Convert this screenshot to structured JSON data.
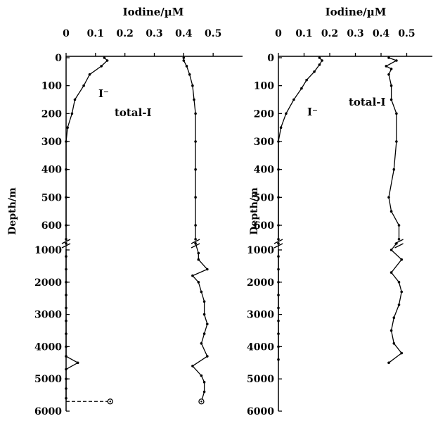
{
  "chart_data": [
    {
      "type": "line",
      "panel": "left",
      "title": "Iodine/µM",
      "ylabel": "Depth/m",
      "xlim": [
        0,
        0.6
      ],
      "x_ticks": [
        "0",
        "0.1",
        "0.2",
        "0.3",
        "0.4",
        "0.5"
      ],
      "y_ticks_upper": [
        "0",
        "100",
        "200",
        "300",
        "400",
        "500",
        "600"
      ],
      "y_ticks_lower": [
        "1000",
        "2000",
        "3000",
        "4000",
        "5000",
        "6000"
      ],
      "broken_axis": true,
      "series": [
        {
          "name": "I⁻",
          "upper": [
            [
              0.13,
              0
            ],
            [
              0.14,
              10
            ],
            [
              0.12,
              30
            ],
            [
              0.08,
              60
            ],
            [
              0.06,
              100
            ],
            [
              0.03,
              150
            ],
            [
              0.02,
              200
            ],
            [
              0.005,
              250
            ],
            [
              0,
              300
            ],
            [
              0,
              400
            ],
            [
              0,
              500
            ],
            [
              0,
              600
            ],
            [
              0,
              650
            ]
          ],
          "lower": [
            [
              0,
              800
            ],
            [
              0,
              1200
            ],
            [
              0,
              1600
            ],
            [
              0,
              2000
            ],
            [
              0,
              2400
            ],
            [
              0,
              2800
            ],
            [
              0,
              3200
            ],
            [
              0,
              3600
            ],
            [
              0,
              4000
            ],
            [
              0,
              4300
            ],
            [
              0.04,
              4500
            ],
            [
              0,
              4700
            ],
            [
              0,
              5000
            ],
            [
              0,
              5300
            ],
            [
              0,
              5600
            ]
          ],
          "open_marker": [
            0.15,
            5700
          ]
        },
        {
          "name": "total-I",
          "upper": [
            [
              0.4,
              0
            ],
            [
              0.4,
              10
            ],
            [
              0.41,
              30
            ],
            [
              0.42,
              60
            ],
            [
              0.43,
              100
            ],
            [
              0.435,
              150
            ],
            [
              0.44,
              200
            ],
            [
              0.44,
              300
            ],
            [
              0.44,
              400
            ],
            [
              0.44,
              500
            ],
            [
              0.44,
              600
            ],
            [
              0.44,
              650
            ]
          ],
          "lower": [
            [
              0.44,
              800
            ],
            [
              0.45,
              1100
            ],
            [
              0.45,
              1300
            ],
            [
              0.48,
              1600
            ],
            [
              0.43,
              1800
            ],
            [
              0.45,
              2000
            ],
            [
              0.46,
              2300
            ],
            [
              0.47,
              2600
            ],
            [
              0.47,
              3000
            ],
            [
              0.48,
              3300
            ],
            [
              0.47,
              3600
            ],
            [
              0.46,
              3900
            ],
            [
              0.48,
              4300
            ],
            [
              0.43,
              4600
            ],
            [
              0.46,
              4900
            ],
            [
              0.47,
              5100
            ],
            [
              0.47,
              5400
            ],
            [
              0.46,
              5700
            ]
          ],
          "open_marker": [
            0.46,
            5700
          ]
        }
      ]
    },
    {
      "type": "line",
      "panel": "right",
      "title": "Iodine/µM",
      "ylabel": "Depth/m",
      "xlim": [
        0,
        0.6
      ],
      "x_ticks": [
        "0",
        "0.1",
        "0.2",
        "0.3",
        "0.4",
        "0.5"
      ],
      "y_ticks_upper": [
        "0",
        "100",
        "200",
        "300",
        "400",
        "500",
        "600"
      ],
      "y_ticks_lower": [
        "1000",
        "2000",
        "3000",
        "4000",
        "5000",
        "6000"
      ],
      "broken_axis": true,
      "series": [
        {
          "name": "I⁻",
          "upper": [
            [
              0.16,
              0
            ],
            [
              0.17,
              10
            ],
            [
              0.16,
              25
            ],
            [
              0.14,
              50
            ],
            [
              0.11,
              80
            ],
            [
              0.09,
              110
            ],
            [
              0.06,
              150
            ],
            [
              0.03,
              200
            ],
            [
              0.01,
              250
            ],
            [
              0,
              300
            ],
            [
              0,
              400
            ],
            [
              0,
              500
            ],
            [
              0,
              600
            ],
            [
              0,
              650
            ]
          ],
          "lower": [
            [
              0,
              800
            ],
            [
              0,
              1200
            ],
            [
              0,
              1600
            ],
            [
              0,
              2000
            ],
            [
              0,
              2400
            ],
            [
              0,
              2800
            ],
            [
              0,
              3200
            ],
            [
              0,
              3600
            ],
            [
              0,
              4000
            ],
            [
              0,
              4400
            ]
          ]
        },
        {
          "name": "total-I",
          "upper": [
            [
              0.43,
              0
            ],
            [
              0.46,
              10
            ],
            [
              0.42,
              30
            ],
            [
              0.44,
              40
            ],
            [
              0.43,
              60
            ],
            [
              0.44,
              100
            ],
            [
              0.44,
              150
            ],
            [
              0.46,
              200
            ],
            [
              0.46,
              300
            ],
            [
              0.45,
              400
            ],
            [
              0.43,
              500
            ],
            [
              0.44,
              550
            ],
            [
              0.47,
              600
            ],
            [
              0.47,
              650
            ]
          ],
          "lower": [
            [
              0.46,
              800
            ],
            [
              0.44,
              1000
            ],
            [
              0.48,
              1300
            ],
            [
              0.44,
              1700
            ],
            [
              0.47,
              2000
            ],
            [
              0.48,
              2300
            ],
            [
              0.47,
              2700
            ],
            [
              0.45,
              3100
            ],
            [
              0.44,
              3500
            ],
            [
              0.45,
              3900
            ],
            [
              0.48,
              4200
            ],
            [
              0.43,
              4500
            ]
          ]
        }
      ]
    }
  ]
}
